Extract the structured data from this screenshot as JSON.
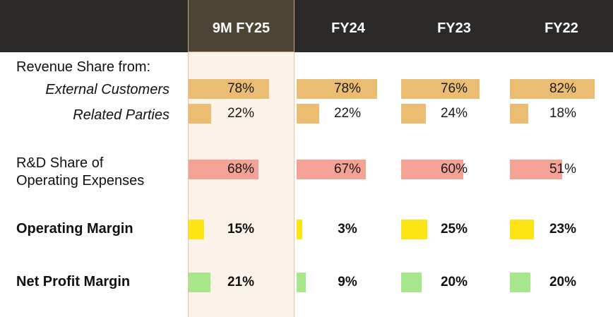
{
  "chart_data": {
    "type": "table",
    "columns": [
      "9M FY25",
      "FY24",
      "FY23",
      "FY22"
    ],
    "highlight_column": "9M FY25",
    "rows": [
      {
        "label": "Revenue Share from:",
        "style": "normal",
        "values": null
      },
      {
        "label": "External Customers",
        "style": "italic",
        "color": "#ebbd73",
        "values": [
          78,
          78,
          76,
          82
        ]
      },
      {
        "label": "Related Parties",
        "style": "italic",
        "color": "#ebbd73",
        "values": [
          22,
          22,
          24,
          18
        ]
      },
      {
        "label": "R&D Share of\nOperating Expenses",
        "style": "normal",
        "color": "#f4a295",
        "values": [
          68,
          67,
          60,
          51
        ]
      },
      {
        "label": "Operating Margin",
        "style": "bold",
        "color": "#fde414",
        "values": [
          15,
          3,
          25,
          23
        ]
      },
      {
        "label": "Net Profit Margin",
        "style": "bold",
        "color": "#a8e68c",
        "values": [
          21,
          9,
          20,
          20
        ]
      }
    ],
    "unit": "%"
  }
}
